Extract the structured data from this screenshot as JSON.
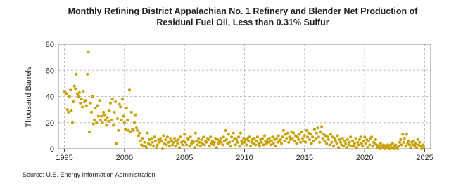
{
  "chart_data": {
    "type": "scatter",
    "title": "Monthly Refining District Appalachian No. 1 Refinery and Blender Net Production of Residual Fuel Oil, Less than 0.31% Sulfur",
    "y_label": "Thousand Barrels",
    "source": "Source: U.S. Energy Information Administration",
    "xlim": [
      1994.5,
      2025.5
    ],
    "xticks": [
      1995,
      2000,
      2005,
      2010,
      2015,
      2020,
      2025
    ],
    "ylim": [
      0,
      80
    ],
    "yticks": [
      0,
      20,
      40,
      60,
      80
    ],
    "grid": true,
    "series": [
      {
        "color": "#c8a000",
        "x": [
          1995,
          1995.08,
          1995.17,
          1995.25,
          1995.33,
          1995.42,
          1995.5,
          1995.58,
          1995.67,
          1995.75,
          1995.83,
          1995.92,
          1996,
          1996.08,
          1996.17,
          1996.25,
          1996.33,
          1996.42,
          1996.5,
          1996.58,
          1996.67,
          1996.75,
          1996.83,
          1996.92,
          1997,
          1997.08,
          1997.17,
          1997.25,
          1997.33,
          1997.42,
          1997.5,
          1997.58,
          1997.67,
          1997.75,
          1997.83,
          1997.92,
          1998,
          1998.08,
          1998.17,
          1998.25,
          1998.33,
          1998.42,
          1998.5,
          1998.58,
          1998.67,
          1998.75,
          1998.83,
          1998.92,
          1999,
          1999.08,
          1999.17,
          1999.25,
          1999.33,
          1999.42,
          1999.5,
          1999.58,
          1999.67,
          1999.75,
          1999.83,
          1999.92,
          2000,
          2000.08,
          2000.17,
          2000.25,
          2000.33,
          2000.42,
          2000.5,
          2000.58,
          2000.67,
          2000.75,
          2000.83,
          2000.92,
          2001,
          2001.08,
          2001.17,
          2001.25,
          2001.33,
          2001.42,
          2001.5,
          2001.58,
          2001.67,
          2001.75,
          2001.83,
          2001.92,
          2002,
          2002.08,
          2002.17,
          2002.25,
          2002.33,
          2002.42,
          2002.5,
          2002.58,
          2002.67,
          2002.75,
          2002.83,
          2002.92,
          2003,
          2003.08,
          2003.17,
          2003.25,
          2003.33,
          2003.42,
          2003.5,
          2003.58,
          2003.67,
          2003.75,
          2003.83,
          2003.92,
          2004,
          2004.08,
          2004.17,
          2004.25,
          2004.33,
          2004.42,
          2004.5,
          2004.58,
          2004.67,
          2004.75,
          2004.83,
          2004.92,
          2005,
          2005.08,
          2005.17,
          2005.25,
          2005.33,
          2005.42,
          2005.5,
          2005.58,
          2005.67,
          2005.75,
          2005.83,
          2005.92,
          2006,
          2006.08,
          2006.17,
          2006.25,
          2006.33,
          2006.42,
          2006.5,
          2006.58,
          2006.67,
          2006.75,
          2006.83,
          2006.92,
          2007,
          2007.08,
          2007.17,
          2007.25,
          2007.33,
          2007.42,
          2007.5,
          2007.58,
          2007.67,
          2007.75,
          2007.83,
          2007.92,
          2008,
          2008.08,
          2008.17,
          2008.25,
          2008.33,
          2008.42,
          2008.5,
          2008.58,
          2008.67,
          2008.75,
          2008.83,
          2008.92,
          2009,
          2009.08,
          2009.17,
          2009.25,
          2009.33,
          2009.42,
          2009.5,
          2009.58,
          2009.67,
          2009.75,
          2009.83,
          2009.92,
          2010,
          2010.08,
          2010.17,
          2010.25,
          2010.33,
          2010.42,
          2010.5,
          2010.58,
          2010.67,
          2010.75,
          2010.83,
          2010.92,
          2011,
          2011.08,
          2011.17,
          2011.25,
          2011.33,
          2011.42,
          2011.5,
          2011.58,
          2011.67,
          2011.75,
          2011.83,
          2011.92,
          2012,
          2012.08,
          2012.17,
          2012.25,
          2012.33,
          2012.42,
          2012.5,
          2012.58,
          2012.67,
          2012.75,
          2012.83,
          2012.92,
          2013,
          2013.08,
          2013.17,
          2013.25,
          2013.33,
          2013.42,
          2013.5,
          2013.58,
          2013.67,
          2013.75,
          2013.83,
          2013.92,
          2014,
          2014.08,
          2014.17,
          2014.25,
          2014.33,
          2014.42,
          2014.5,
          2014.58,
          2014.67,
          2014.75,
          2014.83,
          2014.92,
          2015,
          2015.08,
          2015.17,
          2015.25,
          2015.33,
          2015.42,
          2015.5,
          2015.58,
          2015.67,
          2015.75,
          2015.83,
          2015.92,
          2016,
          2016.08,
          2016.17,
          2016.25,
          2016.33,
          2016.42,
          2016.5,
          2016.58,
          2016.67,
          2016.75,
          2016.83,
          2016.92,
          2017,
          2017.08,
          2017.17,
          2017.25,
          2017.33,
          2017.42,
          2017.5,
          2017.58,
          2017.67,
          2017.75,
          2017.83,
          2017.92,
          2018,
          2018.08,
          2018.17,
          2018.25,
          2018.33,
          2018.42,
          2018.5,
          2018.58,
          2018.67,
          2018.75,
          2018.83,
          2018.92,
          2019,
          2019.08,
          2019.17,
          2019.25,
          2019.33,
          2019.42,
          2019.5,
          2019.58,
          2019.67,
          2019.75,
          2019.83,
          2019.92,
          2020,
          2020.08,
          2020.17,
          2020.25,
          2020.33,
          2020.42,
          2020.5,
          2020.58,
          2020.67,
          2020.75,
          2020.83,
          2020.92,
          2021,
          2021.08,
          2021.17,
          2021.25,
          2021.33,
          2021.42,
          2021.5,
          2021.58,
          2021.67,
          2021.75,
          2021.83,
          2021.92,
          2022,
          2022.08,
          2022.17,
          2022.25,
          2022.33,
          2022.42,
          2022.5,
          2022.58,
          2022.67,
          2022.75,
          2022.83,
          2022.92,
          2023,
          2023.08,
          2023.17,
          2023.25,
          2023.33,
          2023.42,
          2023.5,
          2023.58,
          2023.67,
          2023.75,
          2023.83,
          2023.92,
          2024,
          2024.08,
          2024.17,
          2024.25,
          2024.33,
          2024.42,
          2024.5,
          2024.58,
          2024.67,
          2024.75,
          2024.83,
          2024.92
        ],
        "values": [
          44,
          43,
          42,
          30,
          28,
          40,
          45,
          29,
          20,
          36,
          48,
          46,
          57,
          42,
          40,
          43,
          35,
          38,
          32,
          44,
          36,
          37,
          33,
          57,
          74,
          13,
          35,
          28,
          40,
          19,
          22,
          31,
          20,
          33,
          25,
          37,
          22,
          25,
          20,
          28,
          26,
          22,
          18,
          24,
          21,
          29,
          35,
          22,
          38,
          18,
          28,
          36,
          4,
          23,
          14,
          34,
          32,
          22,
          38,
          25,
          20,
          15,
          31,
          22,
          14,
          45,
          13,
          28,
          15,
          14,
          20,
          26,
          16,
          14,
          10,
          12,
          6,
          3,
          8,
          2,
          5,
          2,
          1,
          12,
          4,
          7,
          3,
          8,
          5,
          2,
          9,
          6,
          1,
          3,
          7,
          5,
          8,
          6,
          0,
          10,
          4,
          7,
          3,
          9,
          5,
          2,
          8,
          6,
          3,
          5,
          8,
          2,
          6,
          4,
          7,
          1,
          9,
          5,
          3,
          6,
          11,
          5,
          3,
          8,
          7,
          2,
          9,
          4,
          6,
          5,
          1,
          12,
          6,
          3,
          8,
          5,
          2,
          7,
          4,
          9,
          3,
          6,
          5,
          8,
          7,
          2,
          9,
          4,
          6,
          3,
          5,
          8,
          1,
          7,
          4,
          6,
          8,
          5,
          3,
          9,
          6,
          14,
          7,
          4,
          11,
          5,
          2,
          9,
          6,
          12,
          8,
          3,
          7,
          5,
          9,
          2,
          12,
          6,
          4,
          8,
          5,
          7,
          3,
          8,
          6,
          9,
          2,
          5,
          7,
          4,
          8,
          3,
          6,
          9,
          4,
          2,
          7,
          5,
          8,
          3,
          10,
          6,
          4,
          7,
          5,
          8,
          3,
          6,
          9,
          4,
          7,
          2,
          8,
          5,
          10,
          6,
          7,
          4,
          9,
          14,
          6,
          11,
          8,
          12,
          5,
          9,
          7,
          13,
          8,
          12,
          6,
          10,
          4,
          9,
          7,
          11,
          5,
          13,
          8,
          6,
          10,
          5,
          14,
          9,
          12,
          7,
          11,
          4,
          9,
          6,
          15,
          8,
          12,
          16,
          9,
          5,
          13,
          17,
          8,
          11,
          6,
          10,
          4,
          9,
          7,
          3,
          11,
          5,
          9,
          2,
          8,
          6,
          4,
          10,
          1,
          7,
          5,
          3,
          8,
          2,
          6,
          4,
          1,
          7,
          3,
          5,
          9,
          2,
          6,
          2,
          4,
          8,
          1,
          5,
          3,
          7,
          9,
          4,
          2,
          6,
          9,
          4,
          7,
          1,
          6,
          3,
          8,
          9,
          2,
          5,
          4,
          7,
          3,
          1,
          2,
          0,
          4,
          2,
          1,
          3,
          0,
          2,
          1,
          3,
          2,
          0,
          3,
          1,
          4,
          0,
          2,
          3,
          1,
          0,
          2,
          5,
          7,
          3,
          11,
          5,
          8,
          2,
          11,
          4,
          6,
          3,
          1,
          5,
          3,
          6,
          2,
          4,
          1,
          7,
          3,
          5,
          2,
          0,
          3,
          1
        ]
      }
    ]
  }
}
